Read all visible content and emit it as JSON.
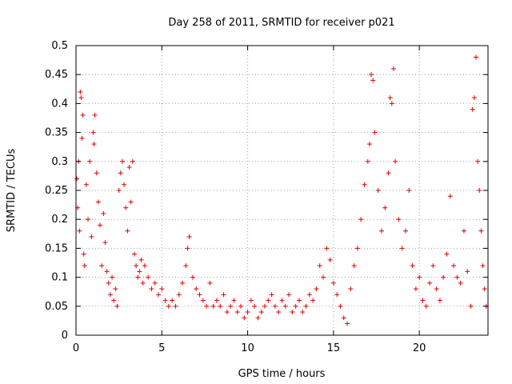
{
  "chart_data": {
    "type": "scatter",
    "title": "Day 258 of 2011, SRMTID for receiver p021",
    "xlabel": "GPS time / hours",
    "ylabel": "SRMTID / TECUs",
    "xlim": [
      0,
      24
    ],
    "ylim": [
      0,
      0.5
    ],
    "x_ticks": [
      0,
      5,
      10,
      15,
      20
    ],
    "x_tick_labels": [
      "0",
      "5",
      "10",
      "15",
      "20"
    ],
    "y_ticks": [
      0,
      0.05,
      0.1,
      0.15,
      0.2,
      0.25,
      0.3,
      0.35,
      0.4,
      0.45,
      0.5
    ],
    "y_tick_labels": [
      "0",
      "0.05",
      "0.1",
      "0.15",
      "0.2",
      "0.25",
      "0.3",
      "0.35",
      "0.4",
      "0.45",
      "0.5"
    ],
    "grid": true,
    "marker": "plus",
    "color": "#e00000",
    "series": [
      {
        "name": "p021",
        "points": [
          [
            0.05,
            0.27
          ],
          [
            0.1,
            0.22
          ],
          [
            0.15,
            0.3
          ],
          [
            0.2,
            0.18
          ],
          [
            0.25,
            0.42
          ],
          [
            0.3,
            0.41
          ],
          [
            0.35,
            0.34
          ],
          [
            0.4,
            0.38
          ],
          [
            0.45,
            0.14
          ],
          [
            0.5,
            0.12
          ],
          [
            0.6,
            0.26
          ],
          [
            0.7,
            0.2
          ],
          [
            0.8,
            0.3
          ],
          [
            0.9,
            0.17
          ],
          [
            1.0,
            0.35
          ],
          [
            1.05,
            0.33
          ],
          [
            1.1,
            0.38
          ],
          [
            1.2,
            0.28
          ],
          [
            1.3,
            0.23
          ],
          [
            1.4,
            0.19
          ],
          [
            1.5,
            0.12
          ],
          [
            1.6,
            0.21
          ],
          [
            1.7,
            0.16
          ],
          [
            1.8,
            0.11
          ],
          [
            1.9,
            0.09
          ],
          [
            2.0,
            0.07
          ],
          [
            2.1,
            0.1
          ],
          [
            2.2,
            0.06
          ],
          [
            2.3,
            0.08
          ],
          [
            2.4,
            0.05
          ],
          [
            2.5,
            0.25
          ],
          [
            2.6,
            0.28
          ],
          [
            2.7,
            0.3
          ],
          [
            2.8,
            0.26
          ],
          [
            2.9,
            0.22
          ],
          [
            3.0,
            0.18
          ],
          [
            3.1,
            0.29
          ],
          [
            3.2,
            0.23
          ],
          [
            3.3,
            0.3
          ],
          [
            3.4,
            0.14
          ],
          [
            3.5,
            0.12
          ],
          [
            3.6,
            0.1
          ],
          [
            3.7,
            0.11
          ],
          [
            3.8,
            0.13
          ],
          [
            3.9,
            0.09
          ],
          [
            4.0,
            0.12
          ],
          [
            4.2,
            0.1
          ],
          [
            4.4,
            0.08
          ],
          [
            4.6,
            0.09
          ],
          [
            4.8,
            0.07
          ],
          [
            5.0,
            0.08
          ],
          [
            5.2,
            0.06
          ],
          [
            5.4,
            0.05
          ],
          [
            5.6,
            0.06
          ],
          [
            5.8,
            0.05
          ],
          [
            6.0,
            0.07
          ],
          [
            6.2,
            0.09
          ],
          [
            6.4,
            0.12
          ],
          [
            6.5,
            0.15
          ],
          [
            6.6,
            0.17
          ],
          [
            6.8,
            0.1
          ],
          [
            7.0,
            0.08
          ],
          [
            7.2,
            0.07
          ],
          [
            7.4,
            0.06
          ],
          [
            7.6,
            0.05
          ],
          [
            7.8,
            0.09
          ],
          [
            8.0,
            0.05
          ],
          [
            8.2,
            0.06
          ],
          [
            8.4,
            0.05
          ],
          [
            8.6,
            0.07
          ],
          [
            8.8,
            0.04
          ],
          [
            9.0,
            0.05
          ],
          [
            9.2,
            0.06
          ],
          [
            9.4,
            0.04
          ],
          [
            9.6,
            0.05
          ],
          [
            9.8,
            0.03
          ],
          [
            10.0,
            0.04
          ],
          [
            10.2,
            0.06
          ],
          [
            10.4,
            0.05
          ],
          [
            10.6,
            0.03
          ],
          [
            10.8,
            0.04
          ],
          [
            11.0,
            0.05
          ],
          [
            11.2,
            0.06
          ],
          [
            11.4,
            0.07
          ],
          [
            11.6,
            0.05
          ],
          [
            11.8,
            0.04
          ],
          [
            12.0,
            0.06
          ],
          [
            12.2,
            0.05
          ],
          [
            12.4,
            0.07
          ],
          [
            12.6,
            0.04
          ],
          [
            12.8,
            0.05
          ],
          [
            13.0,
            0.06
          ],
          [
            13.2,
            0.04
          ],
          [
            13.4,
            0.05
          ],
          [
            13.6,
            0.07
          ],
          [
            13.8,
            0.06
          ],
          [
            14.0,
            0.08
          ],
          [
            14.2,
            0.12
          ],
          [
            14.4,
            0.1
          ],
          [
            14.6,
            0.15
          ],
          [
            14.8,
            0.13
          ],
          [
            15.0,
            0.09
          ],
          [
            15.2,
            0.07
          ],
          [
            15.4,
            0.05
          ],
          [
            15.6,
            0.03
          ],
          [
            15.8,
            0.02
          ],
          [
            16.0,
            0.08
          ],
          [
            16.2,
            0.12
          ],
          [
            16.4,
            0.15
          ],
          [
            16.6,
            0.2
          ],
          [
            16.8,
            0.26
          ],
          [
            17.0,
            0.3
          ],
          [
            17.1,
            0.33
          ],
          [
            17.2,
            0.45
          ],
          [
            17.3,
            0.44
          ],
          [
            17.4,
            0.35
          ],
          [
            17.6,
            0.25
          ],
          [
            17.8,
            0.18
          ],
          [
            18.0,
            0.22
          ],
          [
            18.2,
            0.28
          ],
          [
            18.3,
            0.41
          ],
          [
            18.4,
            0.4
          ],
          [
            18.5,
            0.46
          ],
          [
            18.6,
            0.3
          ],
          [
            18.8,
            0.2
          ],
          [
            19.0,
            0.15
          ],
          [
            19.2,
            0.18
          ],
          [
            19.4,
            0.25
          ],
          [
            19.6,
            0.12
          ],
          [
            19.8,
            0.08
          ],
          [
            20.0,
            0.1
          ],
          [
            20.2,
            0.06
          ],
          [
            20.4,
            0.05
          ],
          [
            20.6,
            0.09
          ],
          [
            20.8,
            0.12
          ],
          [
            21.0,
            0.08
          ],
          [
            21.2,
            0.06
          ],
          [
            21.4,
            0.1
          ],
          [
            21.6,
            0.14
          ],
          [
            21.8,
            0.24
          ],
          [
            22.0,
            0.12
          ],
          [
            22.2,
            0.1
          ],
          [
            22.4,
            0.09
          ],
          [
            22.6,
            0.18
          ],
          [
            22.8,
            0.11
          ],
          [
            23.0,
            0.05
          ],
          [
            23.1,
            0.39
          ],
          [
            23.2,
            0.41
          ],
          [
            23.3,
            0.48
          ],
          [
            23.4,
            0.3
          ],
          [
            23.5,
            0.25
          ],
          [
            23.6,
            0.18
          ],
          [
            23.7,
            0.12
          ],
          [
            23.8,
            0.08
          ],
          [
            23.9,
            0.05
          ]
        ]
      }
    ]
  }
}
